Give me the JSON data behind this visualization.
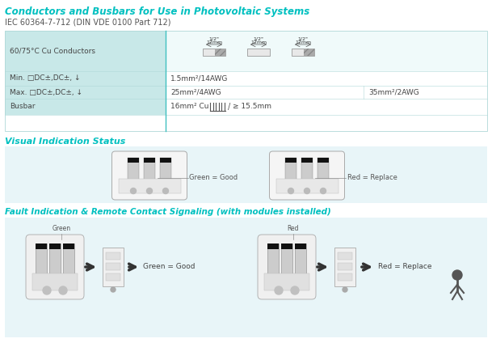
{
  "title": "Conductors and Busbars for Use in Photovoltaic Systems",
  "subtitle": "IEC 60364-7-712 (DIN VDE 0100 Part 712)",
  "teal": "#00c0c0",
  "gray_text": "#555555",
  "dark_text": "#444444",
  "table_bg_col1": "#c8e8e8",
  "table_bg_col2": "#f0fafa",
  "table_border": "#b0d8d8",
  "col_div_color": "#40c0c0",
  "row1_label": "60/75°C Cu Conductors",
  "row2_label": "Min. □DC±,DC±, ↓",
  "row3_label": "Max. □DC±,DC±, ↓",
  "row4_label": "Busbar",
  "row2_val": "1.5mm²/14AWG",
  "row3_val1": "25mm²/4AWG",
  "row3_val2": "35mm²/2AWG",
  "row4_val": "16mm² Cu",
  "row4_suffix": "≥ 15.5mm",
  "vis_title": "Visual Indication Status",
  "fault_title": "Fault Indication & Remote Contact Signaling (with modules installed)",
  "green_label": "Green = Good",
  "red_label": "Red = Replace",
  "section_bg": "#e8f5f8",
  "white": "#ffffff"
}
